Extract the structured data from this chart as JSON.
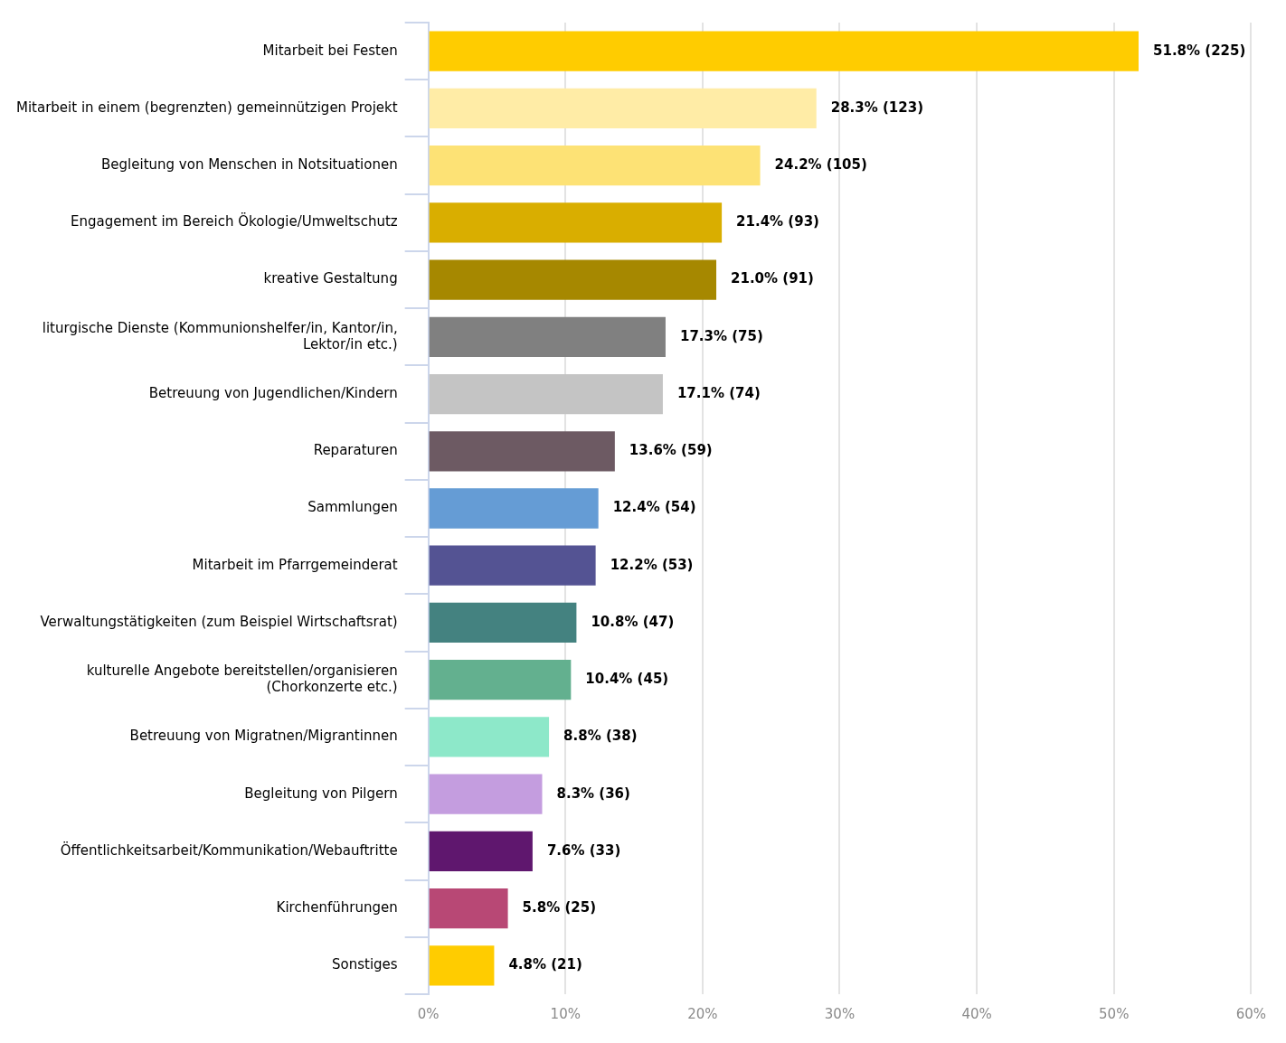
{
  "chart_data": {
    "type": "bar",
    "orientation": "horizontal",
    "categories": [
      "Mitarbeit bei Festen",
      "Mitarbeit in einem (begrenzten) gemeinnützigen Projekt",
      "Begleitung von Menschen in Notsituationen",
      "Engagement im Bereich Ökologie/Umweltschutz",
      "kreative Gestaltung",
      "liturgische Dienste (Kommunionshelfer/in, Kantor/in, Lektor/in etc.)",
      "Betreuung von Jugendlichen/Kindern",
      "Reparaturen",
      "Sammlungen",
      "Mitarbeit im Pfarrgemeinderat",
      "Verwaltungstätigkeiten (zum Beispiel Wirtschaftsrat)",
      "kulturelle Angebote bereitstellen/organisieren (Chorkonzerte etc.)",
      "Betreuung von Migratnen/Migrantinnen",
      "Begleitung von Pilgern",
      "Öffentlichkeitsarbeit/Kommunikation/Webauftritte",
      "Kirchenführungen",
      "Sonstiges"
    ],
    "values": [
      51.8,
      28.3,
      24.2,
      21.4,
      21.0,
      17.3,
      17.1,
      13.6,
      12.4,
      12.2,
      10.8,
      10.4,
      8.8,
      8.3,
      7.6,
      5.8,
      4.8
    ],
    "value_labels": [
      "51.8% (225)",
      "28.3% (123)",
      "24.2% (105)",
      "21.4% (93)",
      "21.0% (91)",
      "17.3% (75)",
      "17.1% (74)",
      "13.6% (59)",
      "12.4% (54)",
      "12.2% (53)",
      "10.8% (47)",
      "10.4% (45)",
      "8.8% (38)",
      "8.3% (36)",
      "7.6% (33)",
      "5.8% (25)",
      "4.8% (21)"
    ],
    "colors": [
      "#ffcc00",
      "#ffeca6",
      "#fde275",
      "#d9ae00",
      "#a68800",
      "#808080",
      "#c4c4c4",
      "#6d5a63",
      "#659cd5",
      "#545393",
      "#448280",
      "#63b08f",
      "#8de8c9",
      "#c49ddf",
      "#5f176e",
      "#b84875",
      "#ffcc00"
    ],
    "xlim": [
      0,
      60
    ],
    "xticks": [
      {
        "value": 0,
        "label": "0%"
      },
      {
        "value": 10,
        "label": "10%"
      },
      {
        "value": 20,
        "label": "20%"
      },
      {
        "value": 30,
        "label": "30%"
      },
      {
        "value": 40,
        "label": "40%"
      },
      {
        "value": 50,
        "label": "50%"
      },
      {
        "value": 60,
        "label": "60%"
      }
    ],
    "grid": "x",
    "legend": false
  }
}
